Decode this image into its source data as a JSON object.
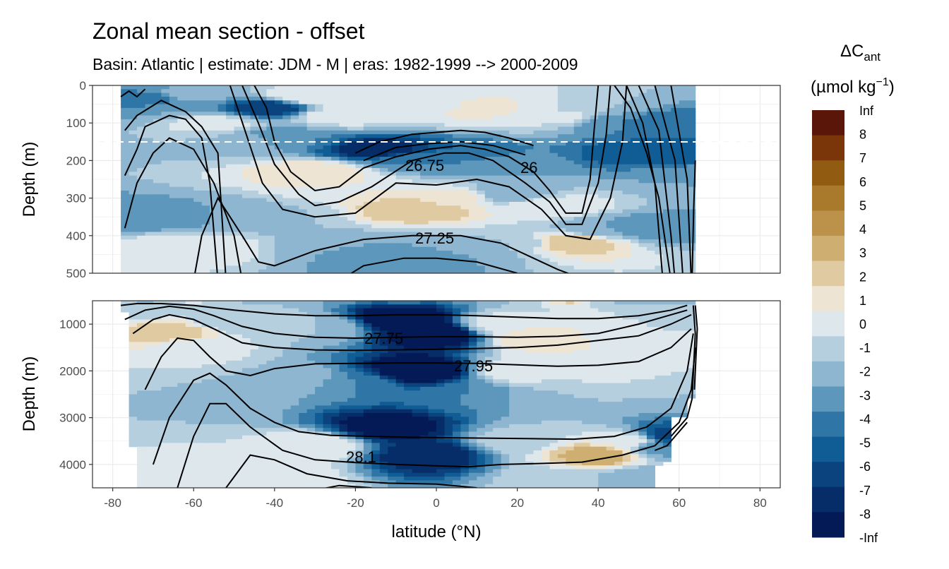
{
  "chart_data": {
    "type": "heatmap",
    "title": "Zonal mean section - offset",
    "subtitle": "Basin: Atlantic | estimate: JDM - M | eras: 1982-1999 --> 2000-2009",
    "xlabel": "latitude (°N)",
    "ylabel": "Depth (m)",
    "xlim": [
      -85,
      85
    ],
    "x_ticks": [
      "-80",
      "-60",
      "-40",
      "-20",
      "0",
      "20",
      "40",
      "60",
      "80"
    ],
    "x_tick_values": [
      -80,
      -60,
      -40,
      -20,
      0,
      20,
      40,
      60,
      80
    ],
    "panels": [
      {
        "name": "upper",
        "ylim": [
          0,
          500
        ],
        "y_ticks": [
          "0",
          "100",
          "200",
          "300",
          "400",
          "500"
        ],
        "y_tick_values": [
          0,
          100,
          200,
          300,
          400,
          500
        ],
        "reference_line_depth": 150
      },
      {
        "name": "lower",
        "ylim": [
          500,
          4500
        ],
        "y_ticks": [
          "1000",
          "2000",
          "3000",
          "4000"
        ],
        "y_tick_values": [
          1000,
          2000,
          3000,
          4000
        ]
      }
    ],
    "legend": {
      "title_main": "ΔC",
      "title_sub": "ant",
      "unit_text": "(µmol kg",
      "unit_sup": "−1",
      "unit_close": ")",
      "labels": [
        "Inf",
        "8",
        "7",
        "6",
        "5",
        "4",
        "3",
        "2",
        "1",
        "0",
        "-1",
        "-2",
        "-3",
        "-4",
        "-5",
        "-6",
        "-7",
        "-8",
        "-Inf"
      ],
      "colors": [
        "#5a1608",
        "#7a3508",
        "#915c12",
        "#a9792c",
        "#bc914a",
        "#cfae72",
        "#dfcaa1",
        "#ede4d3",
        "#dde7ec",
        "#b6cfdf",
        "#8fb6d0",
        "#5d97bb",
        "#2f76a6",
        "#105c94",
        "#0a437d",
        "#072d68",
        "#041a57"
      ]
    },
    "contour_labels": {
      "upper": [
        "26.75",
        "26",
        "27.25"
      ],
      "lower": [
        "27.75",
        "27.95",
        "28.1"
      ]
    },
    "field": [
      {
        "lat": -76,
        "d": 10,
        "v": -3
      },
      {
        "lat": -72,
        "d": 40,
        "v": -4
      },
      {
        "lat": -66,
        "d": 60,
        "v": -2
      },
      {
        "lat": -60,
        "d": 20,
        "v": -1
      },
      {
        "lat": -55,
        "d": 100,
        "v": 0.5
      },
      {
        "lat": -48,
        "d": 150,
        "v": -1
      },
      {
        "lat": -41,
        "d": 60,
        "v": -6
      },
      {
        "lat": -38,
        "d": 140,
        "v": -3
      },
      {
        "lat": -32,
        "d": 30,
        "v": 1
      },
      {
        "lat": -25,
        "d": 80,
        "v": 0.5
      },
      {
        "lat": -18,
        "d": 60,
        "v": 1
      },
      {
        "lat": -10,
        "d": 40,
        "v": 1
      },
      {
        "lat": 0,
        "d": 50,
        "v": 0.5
      },
      {
        "lat": 10,
        "d": 60,
        "v": 1.5
      },
      {
        "lat": 20,
        "d": 60,
        "v": 1
      },
      {
        "lat": 30,
        "d": 80,
        "v": 0.5
      },
      {
        "lat": 38,
        "d": 60,
        "v": -1
      },
      {
        "lat": 45,
        "d": 100,
        "v": -3
      },
      {
        "lat": 52,
        "d": 180,
        "v": -5
      },
      {
        "lat": 58,
        "d": 100,
        "v": -4
      },
      {
        "lat": 62,
        "d": 250,
        "v": -2
      },
      {
        "lat": -14,
        "d": 170,
        "v": -7
      },
      {
        "lat": -5,
        "d": 200,
        "v": -3
      },
      {
        "lat": 6,
        "d": 185,
        "v": -4
      },
      {
        "lat": 14,
        "d": 210,
        "v": -2
      },
      {
        "lat": -30,
        "d": 230,
        "v": 2
      },
      {
        "lat": -22,
        "d": 260,
        "v": 1
      },
      {
        "lat": -5,
        "d": 330,
        "v": 3
      },
      {
        "lat": 5,
        "d": 300,
        "v": 1.5
      },
      {
        "lat": 18,
        "d": 290,
        "v": -2
      },
      {
        "lat": 28,
        "d": 320,
        "v": 1
      },
      {
        "lat": 33,
        "d": 420,
        "v": 3
      },
      {
        "lat": -50,
        "d": 350,
        "v": -2
      },
      {
        "lat": -70,
        "d": 350,
        "v": -3
      },
      {
        "lat": -60,
        "d": 430,
        "v": 1
      },
      {
        "lat": -40,
        "d": 350,
        "v": -1
      },
      {
        "lat": -22,
        "d": 430,
        "v": -2
      },
      {
        "lat": -8,
        "d": 470,
        "v": -3
      },
      {
        "lat": 8,
        "d": 440,
        "v": -2
      },
      {
        "lat": 20,
        "d": 420,
        "v": -1
      },
      {
        "lat": 42,
        "d": 380,
        "v": -2
      },
      {
        "lat": 55,
        "d": 380,
        "v": -3
      },
      {
        "lat": -75,
        "d": 700,
        "v": -1
      },
      {
        "lat": -66,
        "d": 1150,
        "v": 3
      },
      {
        "lat": -60,
        "d": 1500,
        "v": 0.5
      },
      {
        "lat": -52,
        "d": 900,
        "v": -1
      },
      {
        "lat": -40,
        "d": 1000,
        "v": -0.5
      },
      {
        "lat": -28,
        "d": 1100,
        "v": -1
      },
      {
        "lat": -8,
        "d": 900,
        "v": -9
      },
      {
        "lat": 0,
        "d": 1200,
        "v": -9
      },
      {
        "lat": -4,
        "d": 2000,
        "v": -9
      },
      {
        "lat": -12,
        "d": 3200,
        "v": -8
      },
      {
        "lat": -2,
        "d": 3800,
        "v": -7
      },
      {
        "lat": -20,
        "d": 2300,
        "v": -3
      },
      {
        "lat": 8,
        "d": 2500,
        "v": -3
      },
      {
        "lat": -35,
        "d": 2200,
        "v": -1
      },
      {
        "lat": -55,
        "d": 2600,
        "v": -1
      },
      {
        "lat": -70,
        "d": 3000,
        "v": -1
      },
      {
        "lat": -60,
        "d": 4000,
        "v": 0.5
      },
      {
        "lat": -40,
        "d": 4300,
        "v": 1
      },
      {
        "lat": -30,
        "d": 3600,
        "v": 1
      },
      {
        "lat": 15,
        "d": 1000,
        "v": 0.5
      },
      {
        "lat": 25,
        "d": 1300,
        "v": 2
      },
      {
        "lat": 35,
        "d": 1400,
        "v": 1
      },
      {
        "lat": 45,
        "d": 1100,
        "v": 0.5
      },
      {
        "lat": 52,
        "d": 1300,
        "v": 1
      },
      {
        "lat": 58,
        "d": 900,
        "v": -1
      },
      {
        "lat": 20,
        "d": 2000,
        "v": 1
      },
      {
        "lat": 30,
        "d": 2500,
        "v": -1
      },
      {
        "lat": 42,
        "d": 2000,
        "v": 0.5
      },
      {
        "lat": 55,
        "d": 2500,
        "v": -1
      },
      {
        "lat": 20,
        "d": 3500,
        "v": -0.5
      },
      {
        "lat": 40,
        "d": 3800,
        "v": 4
      },
      {
        "lat": 48,
        "d": 3500,
        "v": 1
      },
      {
        "lat": 55,
        "d": 3600,
        "v": -3
      },
      {
        "lat": 58,
        "d": 3400,
        "v": -6
      },
      {
        "lat": 30,
        "d": 4300,
        "v": -0.5
      },
      {
        "lat": 50,
        "d": 4300,
        "v": -2
      }
    ]
  }
}
